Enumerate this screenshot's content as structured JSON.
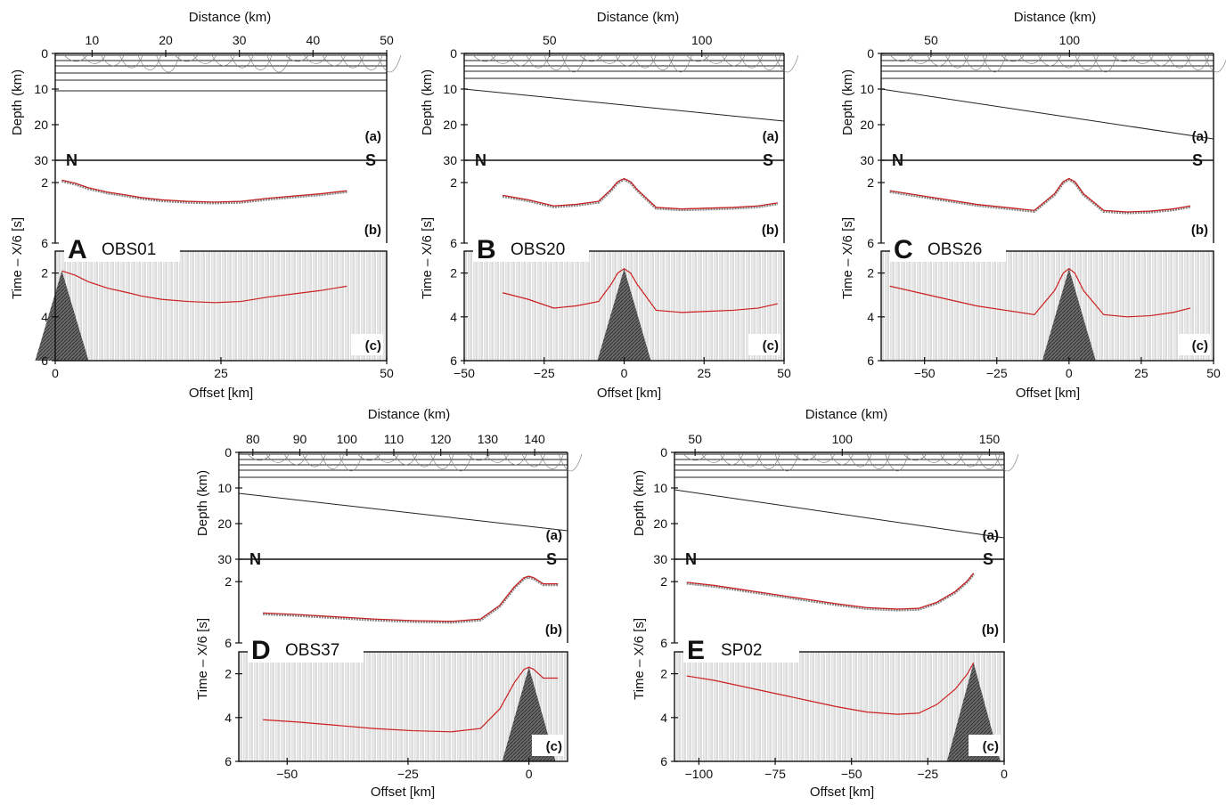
{
  "chart_data": [
    {
      "type": "scatter",
      "panel_letter": "A",
      "station": "OBS01",
      "top_xlabel": "Distance (km)",
      "top_ticks": [
        "10",
        "20",
        "30",
        "40",
        "50"
      ],
      "top_tick_values": [
        10,
        20,
        30,
        40,
        50
      ],
      "top_xlim": [
        5,
        50
      ],
      "depth_ylabel": "Depth (km)",
      "depth_ticks": [
        "0",
        "10",
        "20",
        "30"
      ],
      "depth_ylim": [
        0,
        30
      ],
      "time_ylabel": "Time – X/6 [s]",
      "time_ticks_b": [
        "2",
        "6"
      ],
      "time_ticks_c": [
        "2",
        "4",
        "6"
      ],
      "time_ylim": [
        1,
        6
      ],
      "xlabel": "Offset [km]",
      "offset_ticks": [
        "0",
        "25",
        "50"
      ],
      "offset_tick_values": [
        0,
        25,
        50
      ],
      "xlim": [
        0,
        50
      ],
      "north": "N",
      "south": "S",
      "sublabels": [
        "(a)",
        "(b)",
        "(c)"
      ],
      "picks_x": [
        1,
        3,
        5,
        8,
        11,
        13,
        16,
        20,
        24,
        28,
        32,
        36,
        40,
        44
      ],
      "picks_t": [
        1.9,
        2.1,
        2.4,
        2.7,
        2.9,
        3.05,
        3.2,
        3.3,
        3.35,
        3.3,
        3.1,
        2.95,
        2.8,
        2.6
      ],
      "interfaces_depth": [
        0.5,
        2.0,
        3.5,
        5.5,
        7.5,
        10.5
      ],
      "moho": [
        [
          5,
          10.5
        ],
        [
          50,
          10.5
        ]
      ]
    },
    {
      "type": "scatter",
      "panel_letter": "B",
      "station": "OBS20",
      "top_xlabel": "Distance (km)",
      "top_ticks": [
        "50",
        "100"
      ],
      "top_tick_values": [
        50,
        100
      ],
      "top_xlim": [
        22,
        127
      ],
      "depth_ylabel": "Depth (km)",
      "depth_ticks": [
        "0",
        "10",
        "20",
        "30"
      ],
      "depth_ylim": [
        0,
        30
      ],
      "time_ylabel": "Time – X/6 [s]",
      "time_ticks_b": [
        "2",
        "6"
      ],
      "time_ticks_c": [
        "2",
        "4",
        "6"
      ],
      "time_ylim": [
        1,
        6
      ],
      "xlabel": "Offset [km]",
      "offset_ticks": [
        "−50",
        "−25",
        "0",
        "25",
        "50"
      ],
      "offset_tick_values": [
        -50,
        -25,
        0,
        25,
        50
      ],
      "xlim": [
        -50,
        50
      ],
      "north": "N",
      "south": "S",
      "sublabels": [
        "(a)",
        "(b)",
        "(c)"
      ],
      "picks_x": [
        -38,
        -30,
        -22,
        -15,
        -8,
        -4,
        -2,
        0,
        2,
        4,
        10,
        18,
        26,
        34,
        42,
        48
      ],
      "picks_t": [
        2.9,
        3.2,
        3.6,
        3.5,
        3.3,
        2.5,
        2.0,
        1.8,
        2.0,
        2.5,
        3.7,
        3.8,
        3.75,
        3.7,
        3.6,
        3.4
      ],
      "interfaces_depth": [
        0.5,
        2.0,
        3.5,
        5.0,
        7.0,
        10.0
      ],
      "moho": [
        [
          22,
          10
        ],
        [
          127,
          19
        ]
      ]
    },
    {
      "type": "scatter",
      "panel_letter": "C",
      "station": "OBS26",
      "top_xlabel": "Distance (km)",
      "top_ticks": [
        "50",
        "100"
      ],
      "top_tick_values": [
        50,
        100
      ],
      "top_xlim": [
        32,
        152
      ],
      "depth_ylabel": "Depth (km)",
      "depth_ticks": [
        "0",
        "10",
        "20",
        "30"
      ],
      "depth_ylim": [
        0,
        30
      ],
      "time_ylabel": "Time – X/6 [s]",
      "time_ticks_b": [
        "2",
        "6"
      ],
      "time_ticks_c": [
        "2",
        "4",
        "6"
      ],
      "time_ylim": [
        1,
        6
      ],
      "xlabel": "Offset [km]",
      "offset_ticks": [
        "−50",
        "−25",
        "0",
        "25",
        "50"
      ],
      "offset_tick_values": [
        -50,
        -25,
        0,
        25,
        50
      ],
      "xlim": [
        -65,
        50
      ],
      "north": "N",
      "south": "S",
      "sublabels": [
        "(a)",
        "(b)",
        "(c)"
      ],
      "picks_x": [
        -62,
        -52,
        -42,
        -32,
        -22,
        -12,
        -5,
        -2,
        0,
        2,
        5,
        12,
        20,
        28,
        36,
        42
      ],
      "picks_t": [
        2.6,
        2.9,
        3.2,
        3.5,
        3.7,
        3.9,
        2.8,
        2.0,
        1.8,
        2.0,
        2.8,
        3.9,
        4.0,
        3.95,
        3.8,
        3.6
      ],
      "interfaces_depth": [
        0.5,
        2.0,
        3.5,
        5.0,
        7.0,
        10.0
      ],
      "moho": [
        [
          32,
          10
        ],
        [
          152,
          24
        ]
      ]
    },
    {
      "type": "scatter",
      "panel_letter": "D",
      "station": "OBS37",
      "top_xlabel": "Distance (km)",
      "top_ticks": [
        "80",
        "90",
        "100",
        "110",
        "120",
        "130",
        "140"
      ],
      "top_tick_values": [
        80,
        90,
        100,
        110,
        120,
        130,
        140
      ],
      "top_xlim": [
        77,
        147
      ],
      "depth_ylabel": "Depth (km)",
      "depth_ticks": [
        "0",
        "10",
        "20",
        "30"
      ],
      "depth_ylim": [
        0,
        30
      ],
      "time_ylabel": "Time – X/6 [s]",
      "time_ticks_b": [
        "2",
        "6"
      ],
      "time_ticks_c": [
        "2",
        "4",
        "6"
      ],
      "time_ylim": [
        1,
        6
      ],
      "xlabel": "Offset [km]",
      "offset_ticks": [
        "−50",
        "−25",
        "0"
      ],
      "offset_tick_values": [
        -50,
        -25,
        0
      ],
      "xlim": [
        -60,
        8
      ],
      "north": "N",
      "south": "S",
      "sublabels": [
        "(a)",
        "(b)",
        "(c)"
      ],
      "picks_x": [
        -55,
        -48,
        -40,
        -32,
        -24,
        -16,
        -10,
        -6,
        -3,
        -1,
        0,
        1,
        3,
        6
      ],
      "picks_t": [
        4.1,
        4.2,
        4.35,
        4.5,
        4.6,
        4.65,
        4.5,
        3.6,
        2.4,
        1.8,
        1.7,
        1.8,
        2.2,
        2.2
      ],
      "interfaces_depth": [
        0.5,
        2.0,
        3.5,
        5.0,
        7.0,
        11.5
      ],
      "moho": [
        [
          77,
          11.5
        ],
        [
          147,
          22
        ]
      ]
    },
    {
      "type": "scatter",
      "panel_letter": "E",
      "station": "SP02",
      "top_xlabel": "Distance (km)",
      "top_ticks": [
        "50",
        "100",
        "150"
      ],
      "top_tick_values": [
        50,
        100,
        150
      ],
      "top_xlim": [
        43,
        155
      ],
      "depth_ylabel": "Depth (km)",
      "depth_ticks": [
        "0",
        "10",
        "20",
        "30"
      ],
      "depth_ylim": [
        0,
        30
      ],
      "time_ylabel": "Time – X/6 [s]",
      "time_ticks_b": [
        "2",
        "6"
      ],
      "time_ticks_c": [
        "2",
        "4",
        "6"
      ],
      "time_ylim": [
        1,
        6
      ],
      "xlabel": "Offset [km]",
      "offset_ticks": [
        "−100",
        "−75",
        "−50",
        "−25",
        "0"
      ],
      "offset_tick_values": [
        -100,
        -75,
        -50,
        -25,
        0
      ],
      "xlim": [
        -108,
        0
      ],
      "north": "N",
      "south": "S",
      "sublabels": [
        "(a)",
        "(b)",
        "(c)"
      ],
      "picks_x": [
        -104,
        -95,
        -85,
        -75,
        -65,
        -55,
        -45,
        -35,
        -28,
        -22,
        -16,
        -12,
        -10
      ],
      "picks_t": [
        2.1,
        2.3,
        2.6,
        2.9,
        3.2,
        3.5,
        3.75,
        3.85,
        3.8,
        3.4,
        2.7,
        2.0,
        1.5
      ],
      "interfaces_depth": [
        0.5,
        2.0,
        3.5,
        5.0,
        7.0,
        10.5
      ],
      "moho": [
        [
          43,
          10.5
        ],
        [
          155,
          24
        ]
      ]
    }
  ]
}
